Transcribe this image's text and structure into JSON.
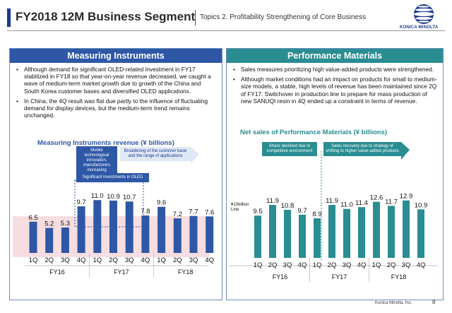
{
  "header": {
    "title": "FY2018 12M Business Segment",
    "subtitle": "Topics 2. Profitability Strengthening of Core Business"
  },
  "logo": {
    "text": "KONICA MINOLTA",
    "icon": "konica-minolta-globe-icon"
  },
  "left": {
    "title": "Measuring  Instruments",
    "bullets": [
      "Although demand for significant OLED-related investment in FY17 stabilized in FY18 so that year-on-year revenue decreased, we caught a wave of medium-term market growth due to growth of the China and South Korea customer bases and diversified OLED applications.",
      "In China, the 4Q result was flat due partly to the influence of fluctuating demand for display devices, but the medium-term trend remains unchanged."
    ],
    "callouts": {
      "mobile": "Mobile technological innovation, manufacturers increasing",
      "broadening": "Broadening of the customer base and the range of applications",
      "oled": "Significant investments in OLED"
    }
  },
  "right": {
    "title": "Performance Materials",
    "bullets": [
      "Sales measures prioritizing high value-added products were strengthened.",
      "Although market conditions had an impact on products for small to medium-size models, a stable, high levels of revenue has been maintained since 2Q of FY17. Switchover in production line to prepare for mass production of new SANUQI resin in 4Q ended up a constraint in terms of revenue."
    ],
    "callouts": {
      "declined": "Share declined due to competitive environment",
      "recovery": "Sales recovery due to strategy of shifting to higher value-added products"
    },
    "line_label": "¥10billion Line"
  },
  "footer": {
    "company": "Konica Minolta, Inc.",
    "page": "8"
  },
  "colors": {
    "bar_blue": "#2e57a6",
    "bar_teal": "#2a8d92",
    "pink_band": "#f7dde0"
  },
  "chart_data": [
    {
      "type": "bar",
      "title": "Measuring Instruments revenue (¥ billions)",
      "categories": [
        "1Q",
        "2Q",
        "3Q",
        "4Q",
        "1Q",
        "2Q",
        "3Q",
        "4Q",
        "1Q",
        "2Q",
        "3Q",
        "4Q"
      ],
      "groups": [
        "FY16",
        "FY17",
        "FY18"
      ],
      "values": [
        6.5,
        5.2,
        5.3,
        9.7,
        11.0,
        10.9,
        10.7,
        7.8,
        9.6,
        7.2,
        7.7,
        7.6
      ],
      "ylim": [
        0,
        12
      ]
    },
    {
      "type": "bar",
      "title": "Net sales of Performance Materials (¥ billions)",
      "categories": [
        "1Q",
        "2Q",
        "3Q",
        "4Q",
        "1Q",
        "2Q",
        "3Q",
        "4Q",
        "1Q",
        "2Q",
        "3Q",
        "4Q"
      ],
      "groups": [
        "FY16",
        "FY17",
        "FY18"
      ],
      "values": [
        9.5,
        11.9,
        10.8,
        9.7,
        8.9,
        11.9,
        11.0,
        11.4,
        12.6,
        11.7,
        12.9,
        10.9
      ],
      "ylim": [
        0,
        14
      ]
    }
  ]
}
